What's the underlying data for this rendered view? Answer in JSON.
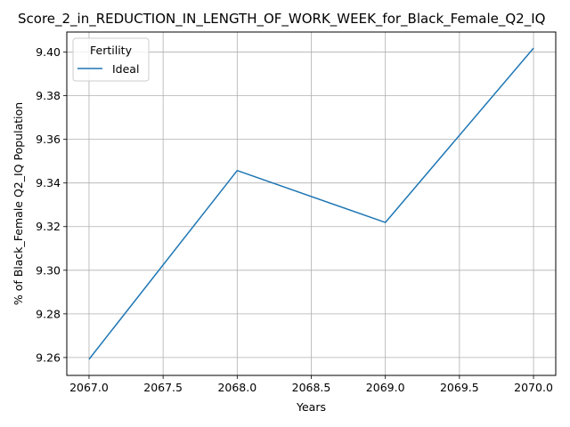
{
  "chart_data": {
    "type": "line",
    "title": "Score_2_in_REDUCTION_IN_LENGTH_OF_WORK_WEEK_for_Black_Female_Q2_IQ",
    "xlabel": "Years",
    "ylabel": "% of Black_Female Q2_IQ Population",
    "x": [
      2067,
      2068,
      2069,
      2070
    ],
    "xlim": [
      2066.85,
      2070.15
    ],
    "ylim": [
      9.2518,
      9.4092
    ],
    "xticks": [
      2067.0,
      2067.5,
      2068.0,
      2068.5,
      2069.0,
      2069.5,
      2070.0
    ],
    "xtick_labels": [
      "2067.0",
      "2067.5",
      "2068.0",
      "2068.5",
      "2069.0",
      "2069.5",
      "2070.0"
    ],
    "yticks": [
      9.26,
      9.28,
      9.3,
      9.32,
      9.34,
      9.36,
      9.38,
      9.4
    ],
    "ytick_labels": [
      "9.26",
      "9.28",
      "9.30",
      "9.32",
      "9.34",
      "9.36",
      "9.38",
      "9.40"
    ],
    "grid": true,
    "legend": {
      "title": "Fertility",
      "placement": "top-left"
    },
    "series": [
      {
        "name": "Ideal",
        "color": "#1f77b4",
        "values": [
          9.2592,
          9.3457,
          9.3219,
          9.4018
        ]
      }
    ]
  }
}
